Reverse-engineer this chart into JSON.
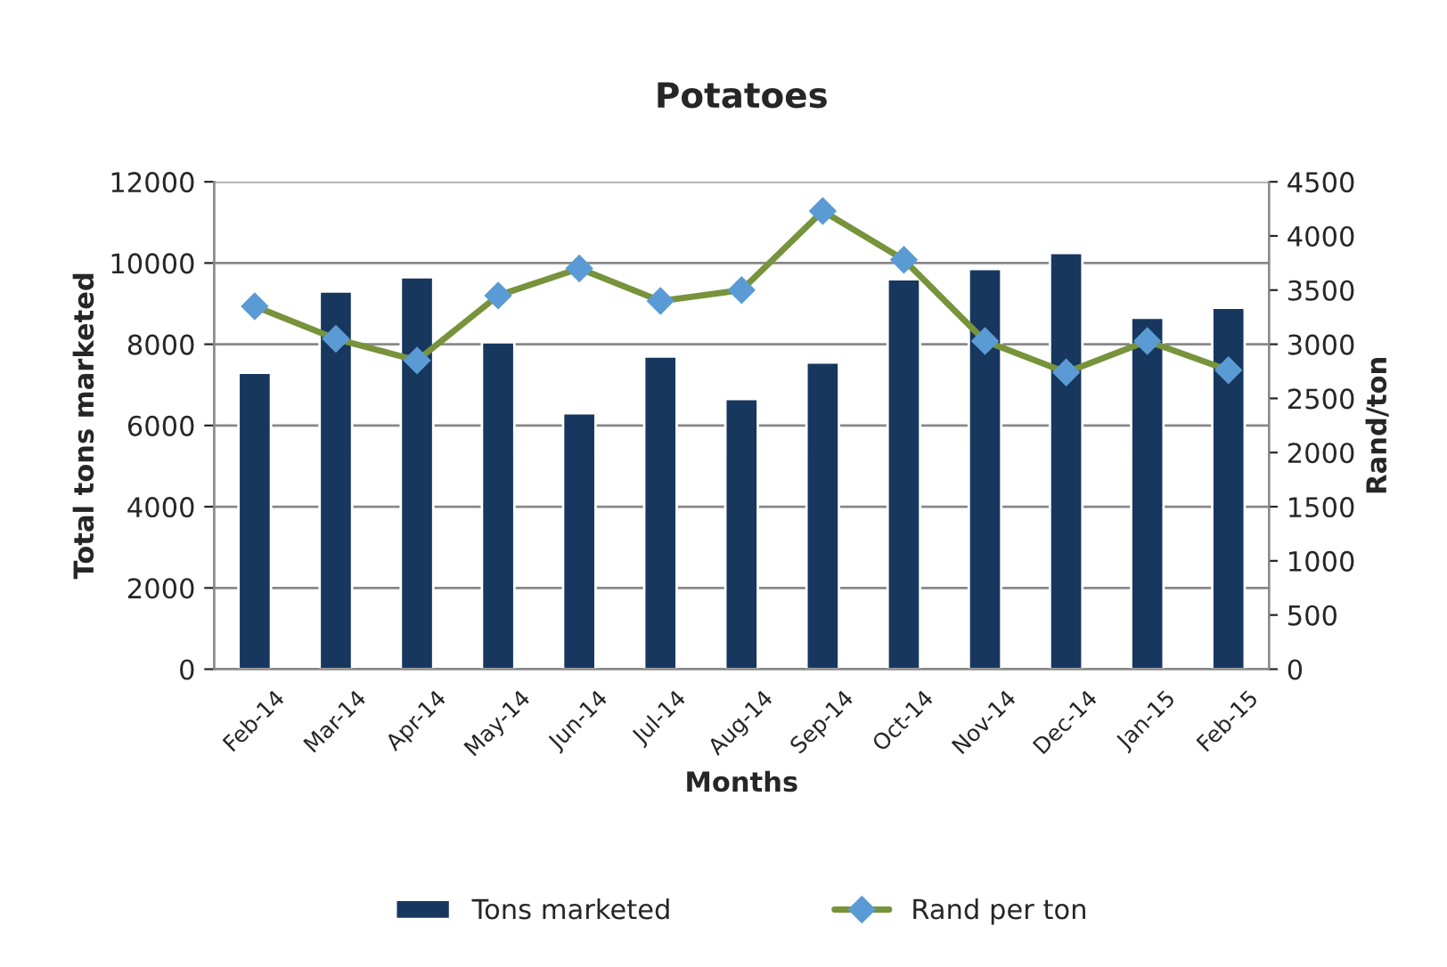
{
  "chart_data": {
    "type": "bar",
    "title": "Potatoes",
    "xlabel": "Months",
    "ylabel": "Total tons marketed",
    "y2label": "Rand/ton",
    "categories": [
      "Feb-14",
      "Mar-14",
      "Apr-14",
      "May-14",
      "Jun-14",
      "Jul-14",
      "Aug-14",
      "Sep-14",
      "Oct-14",
      "Nov-14",
      "Dec-14",
      "Jan-15",
      "Feb-15"
    ],
    "series": [
      {
        "name": "Tons marketed",
        "color": "#17375e",
        "values": [
          7300,
          9300,
          9650,
          8050,
          6300,
          7700,
          6650,
          7550,
          9600,
          9850,
          10250,
          8650,
          8900
        ]
      },
      {
        "name": "Rand per ton",
        "type": "line",
        "axis": "y2",
        "color": "#77933c",
        "values": [
          3350,
          3050,
          2850,
          3450,
          3700,
          3400,
          3500,
          4230,
          3780,
          3030,
          2740,
          3030,
          2760
        ]
      }
    ],
    "ylim": [
      0,
      12000
    ],
    "yticks": [
      0,
      2000,
      4000,
      6000,
      8000,
      10000,
      12000
    ],
    "y2lim": [
      0,
      4500
    ],
    "y2ticks": [
      0,
      500,
      1000,
      1500,
      2000,
      2500,
      3000,
      3500,
      4000,
      4500
    ],
    "grid": "y",
    "legend": "bottom",
    "marker": "diamond",
    "line_style": "solid"
  }
}
